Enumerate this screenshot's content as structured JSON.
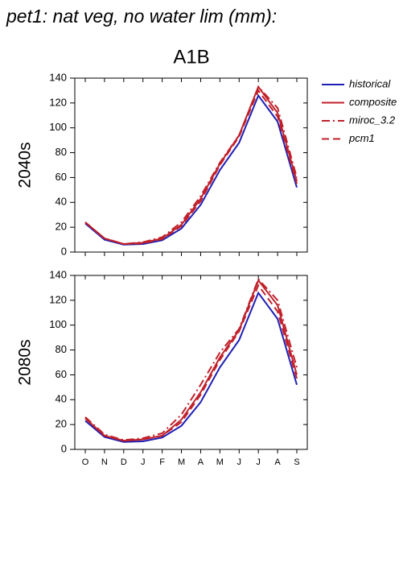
{
  "chart_data": [
    {
      "type": "line",
      "title": "pet1: nat veg, no water lim (mm):",
      "subtitle": "A1B",
      "y_label": "2040s",
      "ylim": [
        0,
        140
      ],
      "yticks": [
        0,
        20,
        40,
        60,
        80,
        100,
        120,
        140
      ],
      "legend": "right",
      "series": [
        {
          "name": "historical",
          "color": "#1f1fb4",
          "dash": "solid",
          "values": [
            23,
            10,
            6,
            6.5,
            9.5,
            19,
            38,
            66,
            88,
            126,
            105,
            52
          ]
        },
        {
          "name": "composite",
          "color": "#c0202a",
          "dash": "solid",
          "values": [
            24,
            11,
            6.5,
            7.5,
            11,
            22,
            43,
            71,
            94,
            133,
            112,
            57
          ]
        },
        {
          "name": "miroc_3.2",
          "color": "#c0202a",
          "dash": "dashdot",
          "values": [
            24,
            11,
            6.5,
            8,
            12,
            24,
            45,
            72,
            94,
            133,
            116,
            60
          ]
        },
        {
          "name": "pcm1",
          "color": "#c0202a",
          "dash": "dashed",
          "values": [
            24,
            11,
            6.5,
            7,
            10.5,
            21,
            41,
            70,
            93,
            130,
            109,
            55
          ]
        }
      ]
    },
    {
      "type": "line",
      "y_label": "2080s",
      "categories": [
        "O",
        "N",
        "D",
        "J",
        "F",
        "M",
        "A",
        "M",
        "J",
        "J",
        "A",
        "S"
      ],
      "ylim": [
        0,
        140
      ],
      "yticks": [
        0,
        20,
        40,
        60,
        80,
        100,
        120,
        140
      ],
      "series": [
        {
          "name": "historical",
          "color": "#1f1fb4",
          "dash": "solid",
          "values": [
            23,
            10,
            6,
            6.5,
            9.5,
            19,
            38,
            66,
            88,
            126,
            105,
            52
          ]
        },
        {
          "name": "composite",
          "color": "#c0202a",
          "dash": "solid",
          "values": [
            25,
            11,
            7,
            8,
            11,
            24,
            46,
            74,
            96,
            136,
            116,
            60
          ]
        },
        {
          "name": "miroc_3.2",
          "color": "#c0202a",
          "dash": "dashdot",
          "values": [
            26,
            12,
            7.5,
            9,
            13,
            28,
            52,
            78,
            97,
            137,
            120,
            66
          ]
        },
        {
          "name": "pcm1",
          "color": "#c0202a",
          "dash": "dashed",
          "values": [
            25,
            11,
            7,
            8,
            11,
            22,
            44,
            72,
            95,
            132,
            111,
            57
          ]
        }
      ]
    }
  ]
}
